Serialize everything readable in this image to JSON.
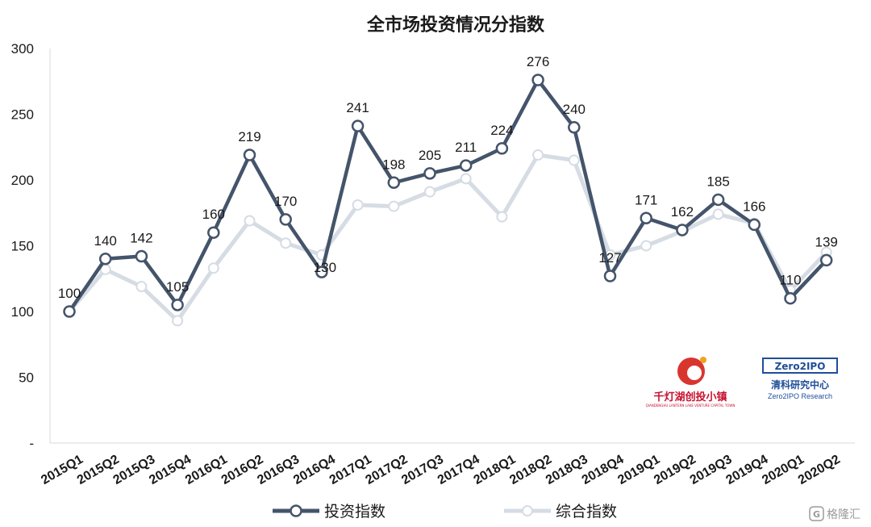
{
  "chart_data": {
    "type": "line",
    "title": "全市场投资情况分指数",
    "xlabel": "",
    "ylabel": "",
    "ylim": [
      0,
      300
    ],
    "yticks": [
      "-",
      "50",
      "100",
      "150",
      "200",
      "250",
      "300"
    ],
    "grid": false,
    "legend_position": "bottom",
    "categories": [
      "2015Q1",
      "2015Q2",
      "2015Q3",
      "2015Q4",
      "2016Q1",
      "2016Q2",
      "2016Q3",
      "2016Q4",
      "2017Q1",
      "2017Q2",
      "2017Q3",
      "2017Q4",
      "2018Q1",
      "2018Q2",
      "2018Q3",
      "2018Q4",
      "2019Q1",
      "2019Q2",
      "2019Q3",
      "2019Q4",
      "2020Q1",
      "2020Q2"
    ],
    "series": [
      {
        "name": "投资指数",
        "color": "#44546a",
        "values": [
          100,
          140,
          142,
          105,
          160,
          219,
          170,
          130,
          241,
          198,
          205,
          211,
          224,
          276,
          240,
          127,
          171,
          162,
          185,
          166,
          110,
          139
        ],
        "labels": [
          "100",
          "140",
          "142",
          "105",
          "160",
          "219",
          "170",
          "130",
          "241",
          "198",
          "205",
          "211",
          "224",
          "276",
          "240",
          "127",
          "171",
          "162",
          "185",
          "166",
          "110",
          "139"
        ]
      },
      {
        "name": "综合指数",
        "color": "#d6dce4",
        "values": [
          100,
          132,
          119,
          93,
          133,
          169,
          152,
          143,
          181,
          180,
          191,
          201,
          172,
          219,
          215,
          143,
          150,
          161,
          174,
          167,
          116,
          145
        ]
      }
    ]
  },
  "logos": {
    "logo_a_text": "千灯湖创投小镇",
    "logo_a_sub": "QIANDENGHU LANTERN LAKE VENTURE CAPITAL TOWN",
    "logo_b_badge": "Zero2IPO",
    "logo_b_text": "清科研究中心",
    "logo_b_sub": "Zero2IPO Research"
  },
  "watermark": {
    "text": "格隆汇",
    "icon": "gelonghui-g-icon"
  }
}
